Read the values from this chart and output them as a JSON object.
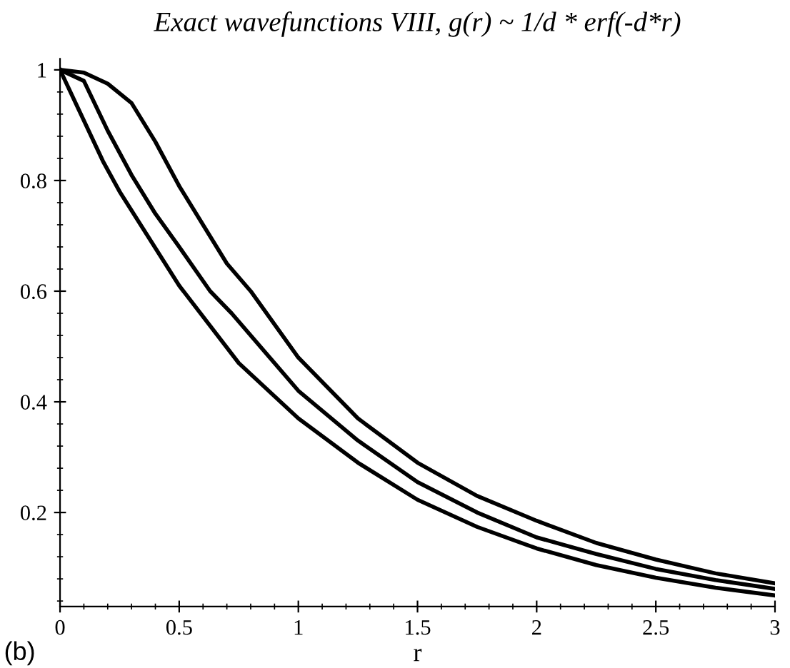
{
  "chart_data": {
    "type": "line",
    "title": "Exact wavefunctions VIII, g(r) ~ 1/d * erf(-d*r)",
    "xlabel": "r",
    "annotations": [
      "(b)"
    ],
    "xlim": [
      0,
      3
    ],
    "ylim": [
      0.03,
      1.02
    ],
    "xticks": [
      0,
      0.5,
      1,
      1.5,
      2,
      2.5,
      3
    ],
    "yticks": [
      0.2,
      0.4,
      0.6,
      0.8,
      1
    ],
    "grid": false,
    "legend": false,
    "marker": "none",
    "line_style": "solid",
    "series": [
      {
        "color": "#000000",
        "x": [
          0,
          0.1,
          0.2,
          0.3,
          0.4,
          0.5,
          0.6,
          0.7,
          0.8,
          1.0,
          1.25,
          1.5,
          1.75,
          2,
          2.25,
          2.5,
          2.75,
          3
        ],
        "values": [
          1,
          0.995,
          0.975,
          0.94,
          0.87,
          0.79,
          0.72,
          0.65,
          0.6,
          0.48,
          0.37,
          0.29,
          0.23,
          0.185,
          0.145,
          0.115,
          0.09,
          0.072
        ]
      },
      {
        "color": "#000000",
        "x": [
          0,
          0.1,
          0.2,
          0.3,
          0.4,
          0.5,
          0.63,
          0.72,
          1.0,
          1.25,
          1.5,
          1.75,
          2,
          2.25,
          2.5,
          2.75,
          3
        ],
        "values": [
          1,
          0.98,
          0.89,
          0.81,
          0.74,
          0.68,
          0.6,
          0.56,
          0.42,
          0.33,
          0.255,
          0.2,
          0.155,
          0.125,
          0.098,
          0.078,
          0.062
        ]
      },
      {
        "color": "#000000",
        "x": [
          0,
          0.18,
          0.25,
          0.5,
          0.75,
          1,
          1.25,
          1.5,
          1.75,
          2,
          2.25,
          2.5,
          2.75,
          3
        ],
        "values": [
          1,
          0.835,
          0.78,
          0.61,
          0.47,
          0.37,
          0.29,
          0.223,
          0.174,
          0.135,
          0.105,
          0.082,
          0.064,
          0.05
        ]
      }
    ]
  }
}
